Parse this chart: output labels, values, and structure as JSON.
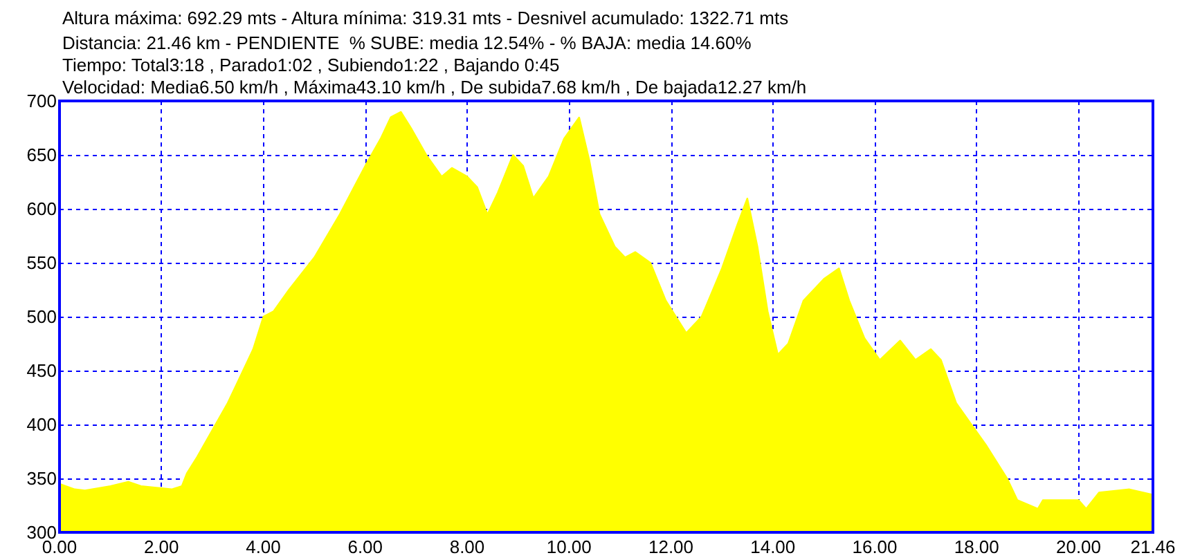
{
  "chart_data": {
    "type": "area",
    "title": "Altura máxima: 692.29 mts - Altura mínima: 319.31 mts - Desnivel acumulado: 1322.71 mts",
    "subtitle": "Distancia: 21.46 km - PENDIENTE  % SUBE: media 12.54% - % BAJA: media 14.60%\nTiempo: Total3:18 , Parado1:02 , Subiendo1:22 , Bajando 0:45\nVelocidad: Media6.50 km/h , Máxima43.10 km/h , De subida7.68 km/h , De bajada12.27 km/h",
    "x": [
      0,
      0.3,
      0.5,
      1.0,
      1.35,
      1.6,
      2.0,
      2.2,
      2.4,
      2.5,
      2.7,
      3.0,
      3.3,
      3.5,
      3.8,
      4.0,
      4.2,
      4.5,
      5.0,
      5.5,
      6.0,
      6.3,
      6.5,
      6.7,
      6.9,
      7.2,
      7.5,
      7.7,
      8.0,
      8.2,
      8.4,
      8.6,
      8.9,
      9.1,
      9.3,
      9.6,
      9.9,
      10.2,
      10.4,
      10.6,
      10.9,
      11.1,
      11.3,
      11.6,
      11.9,
      12.1,
      12.3,
      12.6,
      13.0,
      13.3,
      13.5,
      13.7,
      13.9,
      14.1,
      14.3,
      14.6,
      15.0,
      15.3,
      15.5,
      15.8,
      16.1,
      16.5,
      16.8,
      17.1,
      17.3,
      17.6,
      17.9,
      18.2,
      18.6,
      18.8,
      19.0,
      19.2,
      19.3,
      20.0,
      20.15,
      20.4,
      21.0,
      21.46
    ],
    "series": [
      {
        "color": "#ffff00",
        "values": [
          345,
          340,
          339,
          343,
          347,
          343,
          341,
          340,
          343,
          355,
          370,
          395,
          420,
          440,
          470,
          500,
          505,
          525,
          555,
          595,
          640,
          665,
          685,
          690,
          675,
          650,
          630,
          638,
          630,
          620,
          595,
          615,
          650,
          640,
          610,
          630,
          665,
          685,
          645,
          595,
          565,
          555,
          560,
          550,
          515,
          500,
          485,
          500,
          545,
          585,
          610,
          565,
          505,
          465,
          475,
          515,
          535,
          545,
          515,
          480,
          460,
          478,
          460,
          470,
          460,
          420,
          400,
          380,
          350,
          330,
          326,
          322,
          330,
          330,
          322,
          337,
          340,
          335
        ]
      }
    ],
    "xlim": [
      0,
      21.46
    ],
    "xticks": [
      {
        "value": 0,
        "label": "0.00"
      },
      {
        "value": 2,
        "label": "2.00"
      },
      {
        "value": 4,
        "label": "4.00"
      },
      {
        "value": 6,
        "label": "6.00"
      },
      {
        "value": 8,
        "label": "8.00"
      },
      {
        "value": 10,
        "label": "10.00"
      },
      {
        "value": 12,
        "label": "12.00"
      },
      {
        "value": 14,
        "label": "14.00"
      },
      {
        "value": 16,
        "label": "16.00"
      },
      {
        "value": 18,
        "label": "18.00"
      },
      {
        "value": 20,
        "label": "20.00"
      },
      {
        "value": 21.46,
        "label": "21.46"
      }
    ],
    "ylim": [
      300,
      700
    ],
    "yticks": [
      300,
      350,
      400,
      450,
      500,
      550,
      600,
      650,
      700
    ],
    "grid": true,
    "marker": "none"
  }
}
